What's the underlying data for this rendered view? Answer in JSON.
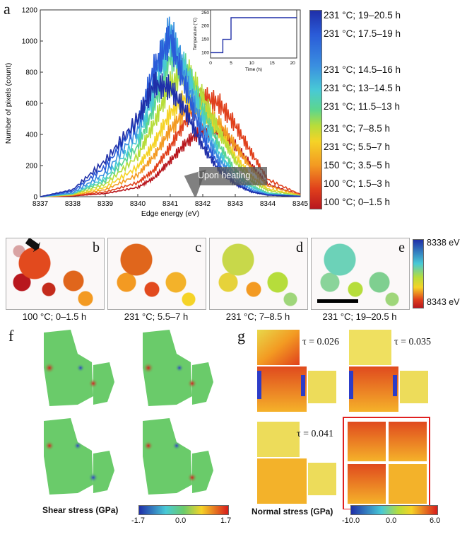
{
  "panel_a": {
    "letter": "a",
    "chart_data": {
      "type": "line",
      "title": "",
      "xlabel": "Edge energy (eV)",
      "ylabel": "Number of pixels (count)",
      "xlim": [
        8337,
        8345
      ],
      "ylim": [
        0,
        1200
      ],
      "xticks": [
        "8337",
        "8338",
        "8339",
        "8340",
        "8341",
        "8342",
        "8343",
        "8344",
        "8345"
      ],
      "yticks": [
        "0",
        "200",
        "400",
        "600",
        "800",
        "1000",
        "1200"
      ],
      "series": [
        {
          "name": "100 °C; 0–1.5 h",
          "color": "#b8171e",
          "x": [
            8337,
            8338,
            8339,
            8340,
            8340.5,
            8341,
            8341.5,
            8342,
            8342.5,
            8343,
            8343.5,
            8344,
            8345
          ],
          "values": [
            0,
            5,
            20,
            60,
            120,
            230,
            350,
            430,
            420,
            330,
            200,
            80,
            10
          ]
        },
        {
          "name": "100 °C; 1.5–3 h",
          "color": "#e0401c",
          "x": [
            8337,
            8338,
            8339,
            8340,
            8340.5,
            8341,
            8341.5,
            8342,
            8342.5,
            8343,
            8343.5,
            8344,
            8345
          ],
          "values": [
            0,
            8,
            30,
            90,
            170,
            320,
            500,
            640,
            600,
            460,
            280,
            110,
            15
          ]
        },
        {
          "name": "150 °C; 3.5–5 h",
          "color": "#f39a22",
          "x": [
            8337,
            8338,
            8339,
            8340,
            8340.5,
            8341,
            8341.5,
            8342,
            8342.5,
            8343,
            8343.5,
            8344,
            8345
          ],
          "values": [
            0,
            10,
            45,
            140,
            260,
            430,
            560,
            560,
            470,
            330,
            180,
            70,
            10
          ]
        },
        {
          "name": "231 °C; 5.5–7 h",
          "color": "#f5d327",
          "x": [
            8337,
            8338,
            8339,
            8340,
            8340.5,
            8341,
            8341.5,
            8342,
            8342.5,
            8343,
            8343.5,
            8344,
            8345
          ],
          "values": [
            0,
            12,
            60,
            190,
            340,
            540,
            640,
            560,
            420,
            260,
            130,
            50,
            8
          ]
        },
        {
          "name": "231 °C; 7–8.5 h",
          "color": "#b6dd3b",
          "x": [
            8337,
            8338,
            8339,
            8340,
            8340.5,
            8341,
            8341.5,
            8342,
            8342.5,
            8343,
            8343.5,
            8344,
            8345
          ],
          "values": [
            0,
            15,
            80,
            260,
            470,
            720,
            820,
            640,
            420,
            230,
            100,
            40,
            6
          ]
        },
        {
          "name": "231 °C; 11.5–13 h",
          "color": "#5cd68e",
          "x": [
            8337,
            8338,
            8339,
            8340,
            8340.5,
            8341,
            8341.5,
            8342,
            8342.5,
            8343,
            8343.5,
            8344,
            8345
          ],
          "values": [
            0,
            18,
            100,
            320,
            580,
            900,
            820,
            560,
            330,
            170,
            70,
            25,
            4
          ]
        },
        {
          "name": "231 °C; 13–14.5 h",
          "color": "#48c9d6",
          "x": [
            8337,
            8338,
            8339,
            8340,
            8340.5,
            8341,
            8341.5,
            8342,
            8342.5,
            8343,
            8343.5,
            8344,
            8345
          ],
          "values": [
            0,
            20,
            120,
            370,
            660,
            1000,
            800,
            500,
            280,
            140,
            60,
            20,
            3
          ]
        },
        {
          "name": "231 °C; 14.5–16 h",
          "color": "#3a8fe0",
          "x": [
            8337,
            8338,
            8339,
            8340,
            8340.5,
            8341,
            8341.5,
            8342,
            8342.5,
            8343,
            8343.5,
            8344,
            8345
          ],
          "values": [
            0,
            25,
            150,
            430,
            760,
            1080,
            740,
            440,
            240,
            110,
            45,
            15,
            2
          ]
        },
        {
          "name": "231 °C; 17.5–19 h",
          "color": "#2a5bd8",
          "x": [
            8337,
            8338,
            8339,
            8340,
            8340.5,
            8341,
            8341.5,
            8342,
            8342.5,
            8343,
            8343.5,
            8344,
            8345
          ],
          "values": [
            0,
            35,
            190,
            480,
            820,
            1020,
            680,
            380,
            200,
            90,
            35,
            12,
            2
          ]
        },
        {
          "name": "231 °C; 19–20.5 h",
          "color": "#1f2fa8",
          "x": [
            8337,
            8338,
            8339,
            8340,
            8340.5,
            8341,
            8341.5,
            8342,
            8342.5,
            8343,
            8343.5,
            8344,
            8345
          ],
          "values": [
            0,
            45,
            230,
            500,
            720,
            700,
            540,
            320,
            170,
            80,
            30,
            10,
            2
          ]
        }
      ],
      "annotation": "Upon heating"
    },
    "inset": {
      "xlabel": "Time (h)",
      "ylabel": "Temperature (°C)",
      "xticks": [
        "0",
        "5",
        "10",
        "15",
        "20"
      ],
      "yticks": [
        "100",
        "150",
        "200",
        "250"
      ],
      "x": [
        0,
        3,
        3,
        5,
        5,
        21
      ],
      "values": [
        100,
        100,
        150,
        150,
        231,
        231
      ]
    },
    "legend": [
      "231 °C; 19–20.5 h",
      "231 °C; 17.5–19 h",
      "231 °C; 14.5–16 h",
      "231 °C; 13–14.5 h",
      "231 °C; 11.5–13 h",
      "231 °C; 7–8.5 h",
      "231 °C; 5.5–7 h",
      "150 °C; 3.5–5 h",
      "100 °C; 1.5–3 h",
      "100 °C; 0–1.5 h"
    ]
  },
  "maps": {
    "panels": [
      {
        "letter": "b",
        "caption": "100 °C; 0–1.5 h"
      },
      {
        "letter": "c",
        "caption": "231 °C; 5.5–7 h"
      },
      {
        "letter": "d",
        "caption": "231 °C; 7–8.5 h"
      },
      {
        "letter": "e",
        "caption": "231 °C; 19–20.5 h"
      }
    ],
    "colorbar_top": "8338 eV",
    "colorbar_bottom": "8343 eV"
  },
  "panel_f": {
    "letter": "f",
    "label": "Shear stress (GPa)",
    "ticks": [
      "-1.7",
      "0.0",
      "1.7"
    ]
  },
  "panel_g": {
    "letter": "g",
    "label": "Normal stress (GPa)",
    "ticks": [
      "-10.0",
      "0.0",
      "6.0"
    ],
    "taus": [
      "τ = 0.026",
      "τ = 0.035",
      "τ = 0.041"
    ]
  }
}
